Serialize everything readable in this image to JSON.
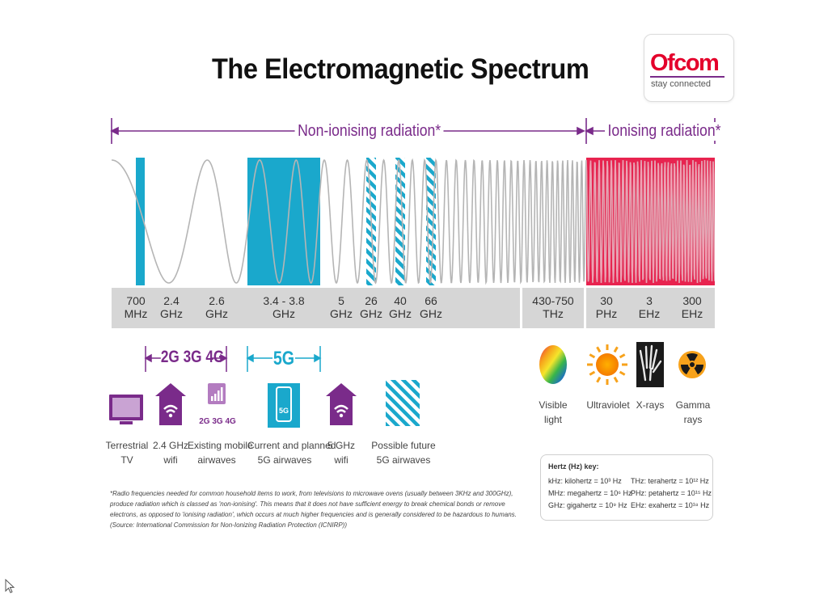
{
  "title": "The Electromagnetic Spectrum",
  "logo": {
    "name": "Ofcom",
    "tagline": "stay connected"
  },
  "brackets": {
    "non_ionising": "Non-ionising radiation*",
    "ionising": "Ionising radiation*"
  },
  "frequencies": [
    {
      "line1": "700",
      "line2": "MHz"
    },
    {
      "line1": "2.4",
      "line2": "GHz"
    },
    {
      "line1": "2.6",
      "line2": "GHz"
    },
    {
      "line1": "3.4 - 3.8",
      "line2": "GHz"
    },
    {
      "line1": "5",
      "line2": "GHz"
    },
    {
      "line1": "26",
      "line2": "GHz"
    },
    {
      "line1": "40",
      "line2": "GHz"
    },
    {
      "line1": "66",
      "line2": "GHz"
    },
    {
      "line1": "430-750",
      "line2": "THz"
    },
    {
      "line1": "30",
      "line2": "PHz"
    },
    {
      "line1": "3",
      "line2": "EHz"
    },
    {
      "line1": "300",
      "line2": "EHz"
    }
  ],
  "tech": {
    "mobile": "2G 3G 4G",
    "five_g": "5G",
    "mast_label": "2G 3G 4G",
    "phone_label": "5G"
  },
  "items": {
    "tv": {
      "line1": "Terrestrial",
      "line2": "TV"
    },
    "wifi24": {
      "line1": "2.4 GHz",
      "line2": "wifi"
    },
    "mobile": {
      "line1": "Existing mobile",
      "line2": "airwaves"
    },
    "fiveg": {
      "line1": "Current and planned",
      "line2": "5G airwaves"
    },
    "wifi5": {
      "line1": "5 GHz",
      "line2": "wifi"
    },
    "future": {
      "line1": "Possible future",
      "line2": "5G airwaves"
    },
    "visible": {
      "line1": "Visible",
      "line2": "light"
    },
    "uv": {
      "line1": "Ultraviolet",
      "line2": ""
    },
    "xray": {
      "line1": "X-rays",
      "line2": ""
    },
    "gamma": {
      "line1": "Gamma",
      "line2": "rays"
    }
  },
  "footnote": "*Radio frequencies needed for common household items to work, from televisions to microwave ovens (usually between 3KHz and 300GHz), produce radiation which is classed as 'non-ionising'. This means that it does not have sufficient energy to break chemical bonds or remove electrons, as opposed to 'ionising radiation', which occurs at much higher frequencies and is generally considered to be hazardous to humans. (Source: International Commission for Non-Ionizing Radiation Protection (ICNIRP))",
  "key": {
    "title": "Hertz (Hz) key:",
    "rows": [
      "kHz: kilohertz = 10³ Hz",
      "THz: terahertz = 10¹² Hz",
      "MHz: megahertz = 10⁶ Hz",
      "PHz: petahertz = 10¹⁵ Hz",
      "GHz: gigahertz = 10⁹ Hz",
      "EHz: exahertz = 10¹⁸ Hz"
    ]
  },
  "colors": {
    "teal": "#1aa8cc",
    "pink": "#e8234f",
    "purple": "#7a2b8a",
    "grey_band": "#d6d6d6",
    "wave": "#b5b5b5"
  }
}
